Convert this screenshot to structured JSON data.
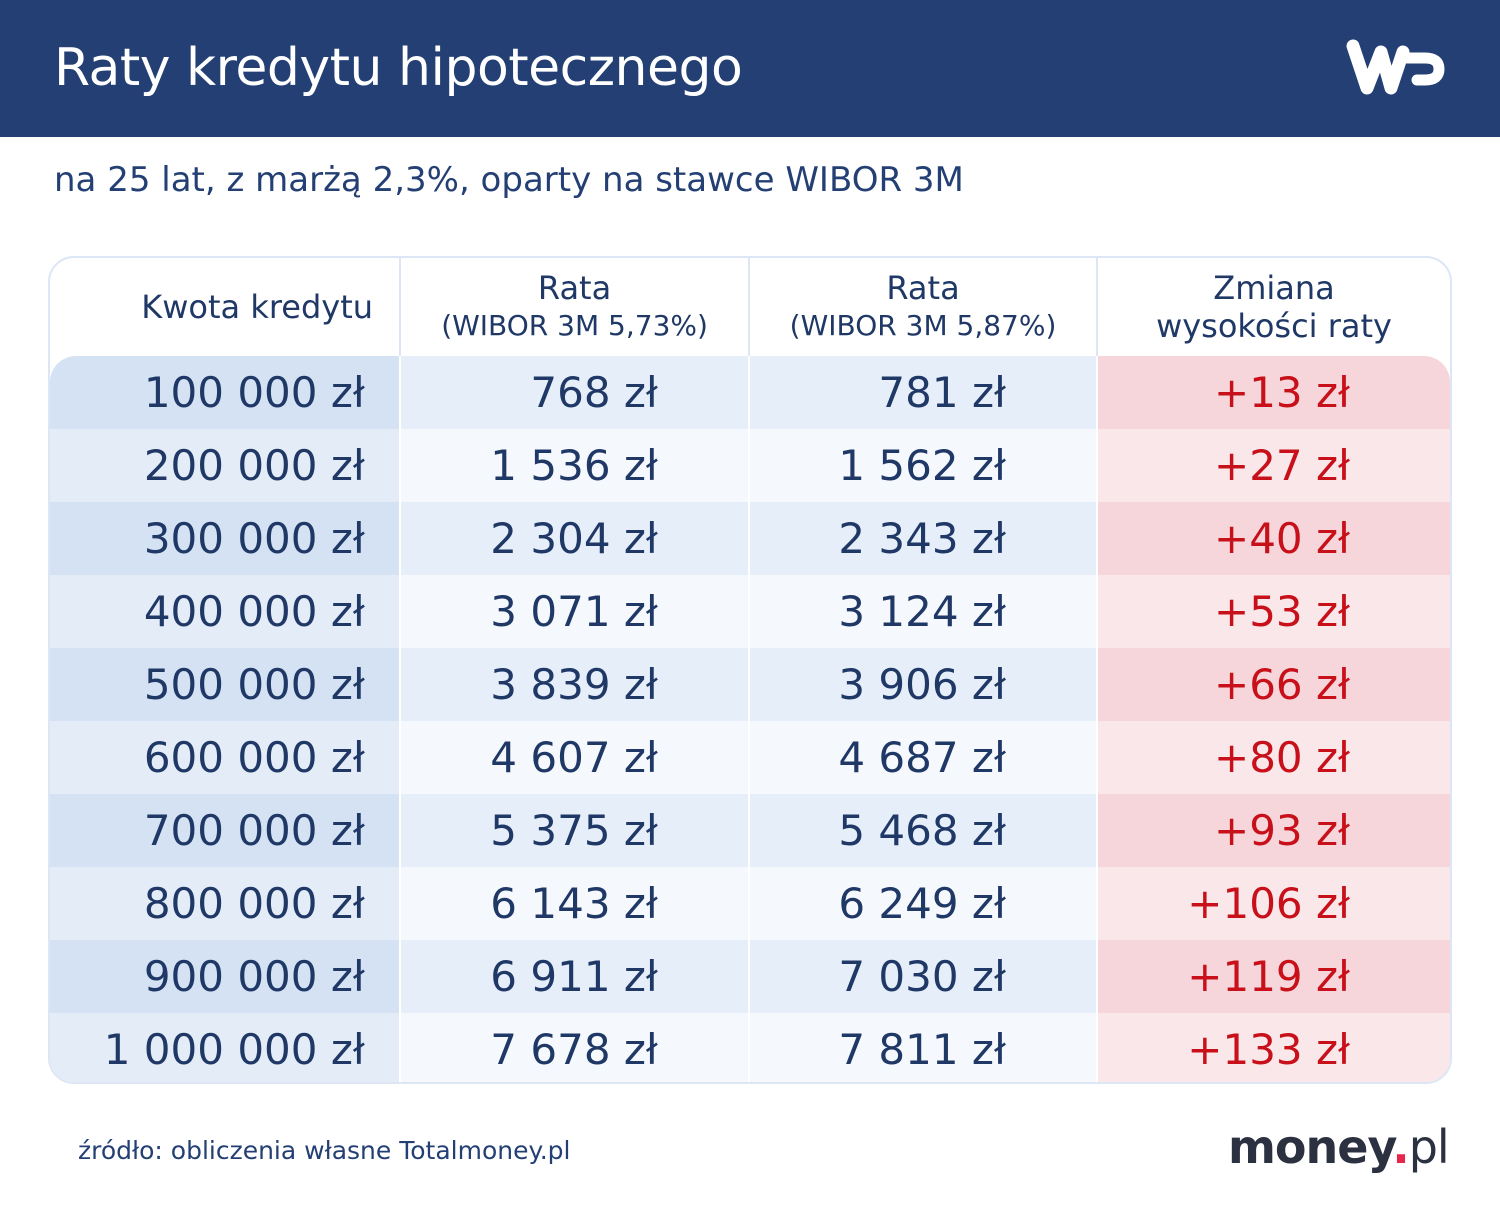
{
  "header": {
    "title": "Raty kredytu hipotecznego",
    "logo": "WP"
  },
  "subtitle": "na 25 lat, z marżą 2,3%, oparty na stawce WIBOR 3M",
  "table": {
    "columns": [
      {
        "line1": "Kwota kredytu",
        "line2": ""
      },
      {
        "line1": "Rata",
        "line2": "(WIBOR 3M 5,73%)"
      },
      {
        "line1": "Rata",
        "line2": "(WIBOR 3M 5,87%)"
      },
      {
        "line1": "Zmiana",
        "line2": "wysokości raty"
      }
    ],
    "rows": [
      [
        "100 000 zł",
        "768 zł",
        "781 zł",
        "+13 zł"
      ],
      [
        "200 000 zł",
        "1 536 zł",
        "1 562 zł",
        "+27 zł"
      ],
      [
        "300 000 zł",
        "2 304 zł",
        "2 343 zł",
        "+40 zł"
      ],
      [
        "400 000 zł",
        "3 071 zł",
        "3 124 zł",
        "+53 zł"
      ],
      [
        "500 000 zł",
        "3 839 zł",
        "3 906 zł",
        "+66 zł"
      ],
      [
        "600 000 zł",
        "4 607 zł",
        "4 687 zł",
        "+80 zł"
      ],
      [
        "700 000 zł",
        "5 375 zł",
        "5 468 zł",
        "+93 zł"
      ],
      [
        "800 000 zł",
        "6 143 zł",
        "6 249 zł",
        "+106 zł"
      ],
      [
        "900 000 zł",
        "6 911 zł",
        "7 030 zł",
        "+119 zł"
      ],
      [
        "1 000 000 zł",
        "7 678 zł",
        "7 811 zł",
        "+133 zł"
      ]
    ]
  },
  "footer": {
    "source": "źródło: obliczenia własne Totalmoney.pl",
    "brand_main": "money",
    "brand_dot": ".",
    "brand_tld": "pl"
  },
  "colors": {
    "header_bg": "#233f73",
    "text": "#1f3866",
    "increase": "#c8101a",
    "brand_dot": "#e6264b"
  }
}
